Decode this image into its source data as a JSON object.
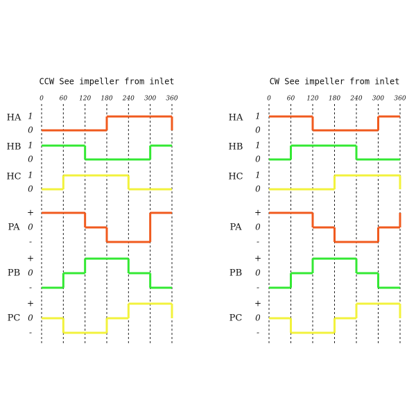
{
  "panels": [
    {
      "title": "CCW  See impeller from inlet",
      "angles": [
        0,
        60,
        120,
        180,
        240,
        300,
        360
      ],
      "signals": [
        {
          "name": "HA",
          "color": "#f05a1e",
          "levels": [
            0,
            0,
            0,
            1,
            1,
            1
          ],
          "level_labels": [
            "1",
            "0"
          ]
        },
        {
          "name": "HB",
          "color": "#33e833",
          "levels": [
            1,
            1,
            0,
            0,
            0,
            1
          ],
          "level_labels": [
            "1",
            "0"
          ]
        },
        {
          "name": "HC",
          "color": "#f2f23c",
          "levels": [
            0,
            1,
            1,
            1,
            0,
            0
          ],
          "level_labels": [
            "1",
            "0"
          ]
        },
        {
          "name": "PA",
          "color": "#f05a1e",
          "levels": [
            1,
            1,
            0,
            -1,
            -1,
            1
          ],
          "level_labels": [
            "+",
            "0",
            "-"
          ]
        },
        {
          "name": "PB",
          "color": "#33e833",
          "levels": [
            -1,
            0,
            1,
            1,
            0,
            -1
          ],
          "level_labels": [
            "+",
            "0",
            "-"
          ]
        },
        {
          "name": "PC",
          "color": "#f2f23c",
          "levels": [
            0,
            -1,
            -1,
            0,
            1,
            1
          ],
          "level_labels": [
            "+",
            "0",
            "-"
          ]
        }
      ]
    },
    {
      "title": "CW  See impeller from inlet",
      "angles": [
        0,
        60,
        120,
        180,
        240,
        300,
        360
      ],
      "signals": [
        {
          "name": "HA",
          "color": "#f05a1e",
          "levels": [
            1,
            1,
            0,
            0,
            0,
            1
          ],
          "level_labels": [
            "1",
            "0"
          ]
        },
        {
          "name": "HB",
          "color": "#33e833",
          "levels": [
            0,
            1,
            1,
            1,
            0,
            0
          ],
          "level_labels": [
            "1",
            "0"
          ]
        },
        {
          "name": "HC",
          "color": "#f2f23c",
          "levels": [
            0,
            0,
            0,
            1,
            1,
            1
          ],
          "level_labels": [
            "1",
            "0"
          ]
        },
        {
          "name": "PA",
          "color": "#f05a1e",
          "levels": [
            1,
            1,
            0,
            -1,
            -1,
            0
          ],
          "level_labels": [
            "+",
            "0",
            "-"
          ]
        },
        {
          "name": "PB",
          "color": "#33e833",
          "levels": [
            -1,
            0,
            1,
            1,
            0,
            -1
          ],
          "level_labels": [
            "+",
            "0",
            "-"
          ]
        },
        {
          "name": "PC",
          "color": "#f2f23c",
          "levels": [
            0,
            -1,
            -1,
            0,
            1,
            1
          ],
          "level_labels": [
            "+",
            "0",
            "-"
          ]
        }
      ]
    }
  ]
}
